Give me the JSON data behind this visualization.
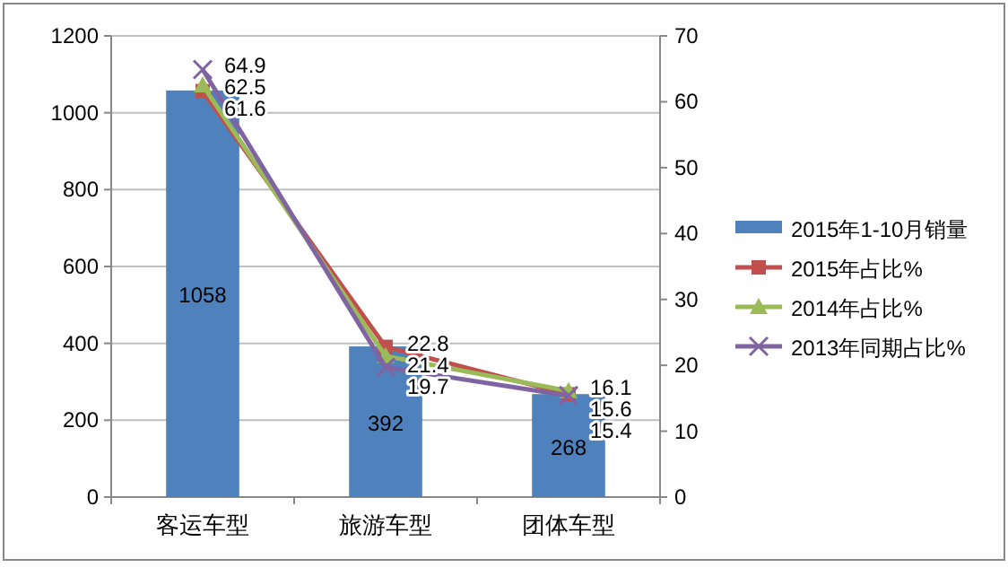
{
  "chart_data": {
    "type": "bar",
    "categories": [
      "客运车型",
      "旅游车型",
      "团体车型"
    ],
    "series": [
      {
        "name": "2015年1-10月销量",
        "color": "#4f81bd",
        "values": [
          1058,
          392,
          268
        ]
      },
      {
        "name": "2015年占比%",
        "type": "line",
        "axis": "y2",
        "marker": "square",
        "color": "#c0504d",
        "values": [
          61.6,
          22.8,
          15.6
        ]
      },
      {
        "name": "2014年占比%",
        "type": "line",
        "axis": "y2",
        "marker": "triangle",
        "color": "#9bbb59",
        "values": [
          62.5,
          21.4,
          16.1
        ]
      },
      {
        "name": "2013年同期占比%",
        "type": "line",
        "axis": "y2",
        "marker": "cross",
        "color": "#8064a2",
        "values": [
          64.9,
          19.7,
          15.4
        ]
      }
    ],
    "ylim": [
      0,
      1200
    ],
    "yticks": [
      0,
      200,
      400,
      600,
      800,
      1000,
      1200
    ],
    "y2lim": [
      0,
      70
    ],
    "y2ticks": [
      0,
      10,
      20,
      30,
      40,
      50,
      60,
      70
    ],
    "grid": "y",
    "legend": "right",
    "data_labels": true
  }
}
